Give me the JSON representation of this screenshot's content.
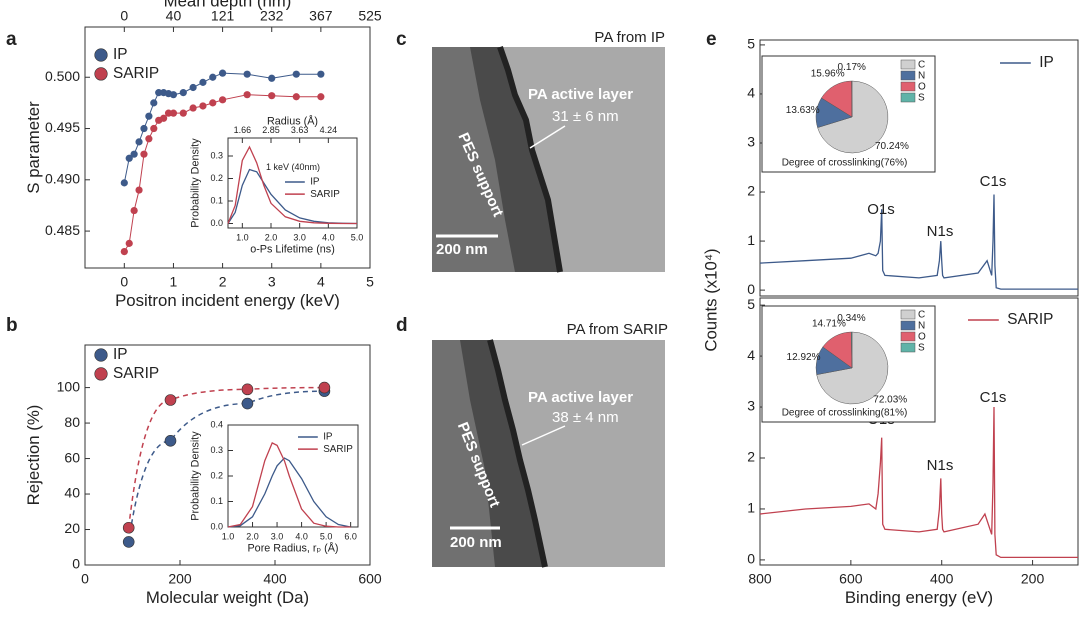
{
  "chart_data": [
    {
      "type": "line",
      "panel": "a",
      "markers": true,
      "xlabel": "Positron incident energy (keV)",
      "ylabel": "S parameter",
      "x2label": "Mean depth (nm)",
      "legend": "upper left",
      "x": [
        0,
        0.1,
        0.2,
        0.3,
        0.4,
        0.5,
        0.6,
        0.7,
        0.8,
        0.9,
        1.0,
        1.2,
        1.4,
        1.6,
        1.8,
        2.0,
        2.5,
        3.0,
        3.5,
        4.0
      ],
      "series": [
        {
          "name": "IP",
          "color": "#3d5a8a",
          "values": [
            0.4897,
            0.4921,
            0.4925,
            0.4937,
            0.495,
            0.4962,
            0.4975,
            0.4985,
            0.4985,
            0.4984,
            0.4983,
            0.4985,
            0.499,
            0.4995,
            0.5,
            0.5004,
            0.5003,
            0.4999,
            0.5003,
            0.5003
          ]
        },
        {
          "name": "SARIP",
          "color": "#c0414f",
          "values": [
            0.483,
            0.4838,
            0.487,
            0.489,
            0.4925,
            0.494,
            0.495,
            0.4958,
            0.496,
            0.4965,
            0.4965,
            0.4965,
            0.497,
            0.4972,
            0.4975,
            0.4978,
            0.4983,
            0.4982,
            0.4981,
            0.4981
          ]
        }
      ],
      "xlim": [
        -0.8,
        5
      ],
      "xticks": [
        0,
        1,
        2,
        3,
        4,
        5
      ],
      "x2ticks": [
        {
          "value": 0,
          "label": "0"
        },
        {
          "value": 1,
          "label": "40"
        },
        {
          "value": 2,
          "label": "121"
        },
        {
          "value": 3,
          "label": "232"
        },
        {
          "value": 4,
          "label": "367"
        },
        {
          "value": 5,
          "label": "525"
        }
      ],
      "ylim": [
        0.4814,
        0.5049
      ],
      "yticks": [
        0.485,
        {
          "value": 0.49,
          "label": "0.490"
        },
        0.495,
        {
          "value": 0.5,
          "label": "0.500"
        }
      ]
    },
    {
      "type": "line",
      "xlabel": "o-Ps Lifetime (ns)",
      "ylabel": "Probability Density",
      "x2label": "Radius (Å)",
      "legend": "upper right",
      "legend_title": "1 keV (40nm)",
      "x": [
        0.5,
        0.75,
        1.0,
        1.25,
        1.5,
        1.75,
        2.0,
        2.5,
        3.0,
        3.5,
        4.0,
        4.5,
        5.0
      ],
      "series": [
        {
          "name": "IP",
          "color": "#3d5a8a",
          "values": [
            0.0,
            0.05,
            0.17,
            0.24,
            0.23,
            0.18,
            0.13,
            0.06,
            0.025,
            0.01,
            0.003,
            0.001,
            0.0
          ]
        },
        {
          "name": "SARIP",
          "color": "#c0414f",
          "values": [
            0.0,
            0.08,
            0.28,
            0.34,
            0.27,
            0.17,
            0.09,
            0.03,
            0.01,
            0.003,
            0.001,
            0.0,
            0.0
          ]
        }
      ],
      "xlim": [
        0.5,
        5.0
      ],
      "xticks": [
        {
          "value": 1,
          "label": "1.0"
        },
        {
          "value": 2,
          "label": "2.0"
        },
        {
          "value": 3,
          "label": "3.0"
        },
        {
          "value": 4,
          "label": "4.0"
        },
        {
          "value": 5,
          "label": "5.0"
        }
      ],
      "x2ticks": [
        {
          "value": 1,
          "label": "1.66"
        },
        {
          "value": 2,
          "label": "2.85"
        },
        {
          "value": 3,
          "label": "3.63"
        },
        {
          "value": 4,
          "label": "4.24"
        }
      ],
      "ylim": [
        -0.02,
        0.38
      ],
      "yticks": [
        {
          "value": 0,
          "label": "0.0"
        },
        0.1,
        0.2,
        0.3
      ]
    },
    {
      "type": "scatter",
      "panel": "b",
      "fit": "dashed",
      "xlabel": "Molecular weight (Da)",
      "ylabel": "Rejection (%)",
      "legend": "upper left",
      "x": [
        92,
        180,
        342,
        504
      ],
      "series": [
        {
          "name": "IP",
          "color": "#3d5a8a",
          "values": [
            13,
            70,
            91,
            98
          ]
        },
        {
          "name": "SARIP",
          "color": "#c0414f",
          "values": [
            21,
            93,
            99,
            100
          ]
        }
      ],
      "xlim": [
        0,
        600
      ],
      "xticks": [
        0,
        200,
        400,
        600
      ],
      "ylim": [
        0,
        124
      ],
      "yticks": [
        0,
        20,
        40,
        60,
        80,
        100
      ]
    },
    {
      "type": "line",
      "xlabel": "Pore Radius, rₚ (Å)",
      "ylabel": "Probability Density",
      "legend": "upper right",
      "x": [
        1.0,
        1.5,
        2.0,
        2.5,
        2.8,
        3.0,
        3.3,
        3.5,
        4.0,
        4.5,
        5.0,
        5.5,
        6.0
      ],
      "series": [
        {
          "name": "IP",
          "color": "#3d5a8a",
          "values": [
            0.0,
            0.005,
            0.04,
            0.13,
            0.2,
            0.24,
            0.27,
            0.26,
            0.19,
            0.1,
            0.04,
            0.01,
            0.0
          ]
        },
        {
          "name": "SARIP",
          "color": "#c0414f",
          "values": [
            0.0,
            0.01,
            0.08,
            0.26,
            0.33,
            0.32,
            0.26,
            0.2,
            0.07,
            0.015,
            0.003,
            0.0,
            0.0
          ]
        }
      ],
      "xlim": [
        1.0,
        6.3
      ],
      "xticks": [
        {
          "value": 1,
          "label": "1.0"
        },
        {
          "value": 2,
          "label": "2.0"
        },
        {
          "value": 3,
          "label": "3.0"
        },
        {
          "value": 4,
          "label": "4.0"
        },
        {
          "value": 5,
          "label": "5.0"
        },
        {
          "value": 6,
          "label": "6.0"
        }
      ],
      "ylim": [
        0,
        0.4
      ],
      "yticks": [
        {
          "value": 0,
          "label": "0.0"
        },
        0.1,
        0.2,
        0.3,
        0.4
      ]
    },
    {
      "type": "line",
      "panel": "e",
      "ylabel": "Counts (x10⁴)",
      "legend": "upper right",
      "annotations": [
        "O1s",
        "N1s",
        "C1s"
      ],
      "x": [
        800,
        700,
        600,
        560,
        545,
        540,
        535,
        532,
        530,
        525,
        450,
        410,
        405,
        402,
        400,
        398,
        395,
        320,
        300,
        290,
        287,
        285,
        283,
        280,
        270,
        200,
        100
      ],
      "series": [
        {
          "name": "IP",
          "color": "#3d5a8a",
          "values": [
            0.55,
            0.6,
            0.65,
            0.75,
            0.7,
            0.75,
            1.0,
            1.65,
            0.4,
            0.3,
            0.25,
            0.3,
            0.6,
            1.0,
            0.6,
            0.3,
            0.25,
            0.35,
            0.6,
            0.3,
            1.0,
            1.95,
            0.5,
            0.05,
            0.02,
            0.02,
            0.02
          ]
        }
      ],
      "xlim": [
        800,
        100
      ],
      "ylim": [
        -0.12,
        5.1
      ],
      "yticks": [
        0,
        1,
        2,
        3,
        4,
        5
      ]
    },
    {
      "type": "pie",
      "caption": "Degree of crosslinking(76%)",
      "categories": [
        "C",
        "N",
        "O",
        "S"
      ],
      "values": [
        70.24,
        13.63,
        15.96,
        0.17
      ],
      "value_labels": [
        "70.24%",
        "13.63%",
        "15.96%",
        "0.17%"
      ],
      "colors": [
        "#d0d0d0",
        "#4e6f9e",
        "#e0606e",
        "#5fb3a8"
      ]
    },
    {
      "type": "line",
      "xlabel": "Binding energy (eV)",
      "legend": "upper right",
      "annotations": [
        "O1s",
        "N1s",
        "C1s"
      ],
      "x": [
        800,
        700,
        600,
        560,
        545,
        540,
        535,
        532,
        530,
        525,
        450,
        410,
        405,
        402,
        400,
        398,
        395,
        320,
        305,
        290,
        287,
        285,
        283,
        280,
        270,
        200,
        100
      ],
      "series": [
        {
          "name": "SARIP",
          "color": "#c0414f",
          "values": [
            0.9,
            1.0,
            1.05,
            1.1,
            1.0,
            1.3,
            1.9,
            2.4,
            0.7,
            0.6,
            0.55,
            0.6,
            1.0,
            1.6,
            0.9,
            0.6,
            0.55,
            0.7,
            0.9,
            0.5,
            1.5,
            3.0,
            0.5,
            0.1,
            0.05,
            0.05,
            0.05
          ]
        }
      ],
      "xlim": [
        800,
        100
      ],
      "xticks": [
        800,
        600,
        400,
        200
      ],
      "ylim": [
        -0.1,
        5.14
      ],
      "yticks": [
        0,
        1,
        2,
        3,
        4,
        5
      ]
    },
    {
      "type": "pie",
      "caption": "Degree of crosslinking(81%)",
      "categories": [
        "C",
        "N",
        "O",
        "S"
      ],
      "values": [
        72.03,
        12.92,
        14.71,
        0.34
      ],
      "value_labels": [
        "72.03%",
        "12.92%",
        "14.71%",
        "0.34%"
      ],
      "colors": [
        "#d0d0d0",
        "#4e6f9e",
        "#e0606e",
        "#5fb3a8"
      ]
    }
  ],
  "images": [
    {
      "panel": "c",
      "caption": "PA from IP",
      "layer_label": "PA active layer",
      "thickness": "31 ± 6 nm",
      "support_label": "PES support",
      "scale_bar": "200 nm"
    },
    {
      "panel": "d",
      "caption": "PA from SARIP",
      "layer_label": "PA active layer",
      "thickness": "38 ± 4 nm",
      "support_label": "PES support",
      "scale_bar": "200 nm"
    }
  ]
}
